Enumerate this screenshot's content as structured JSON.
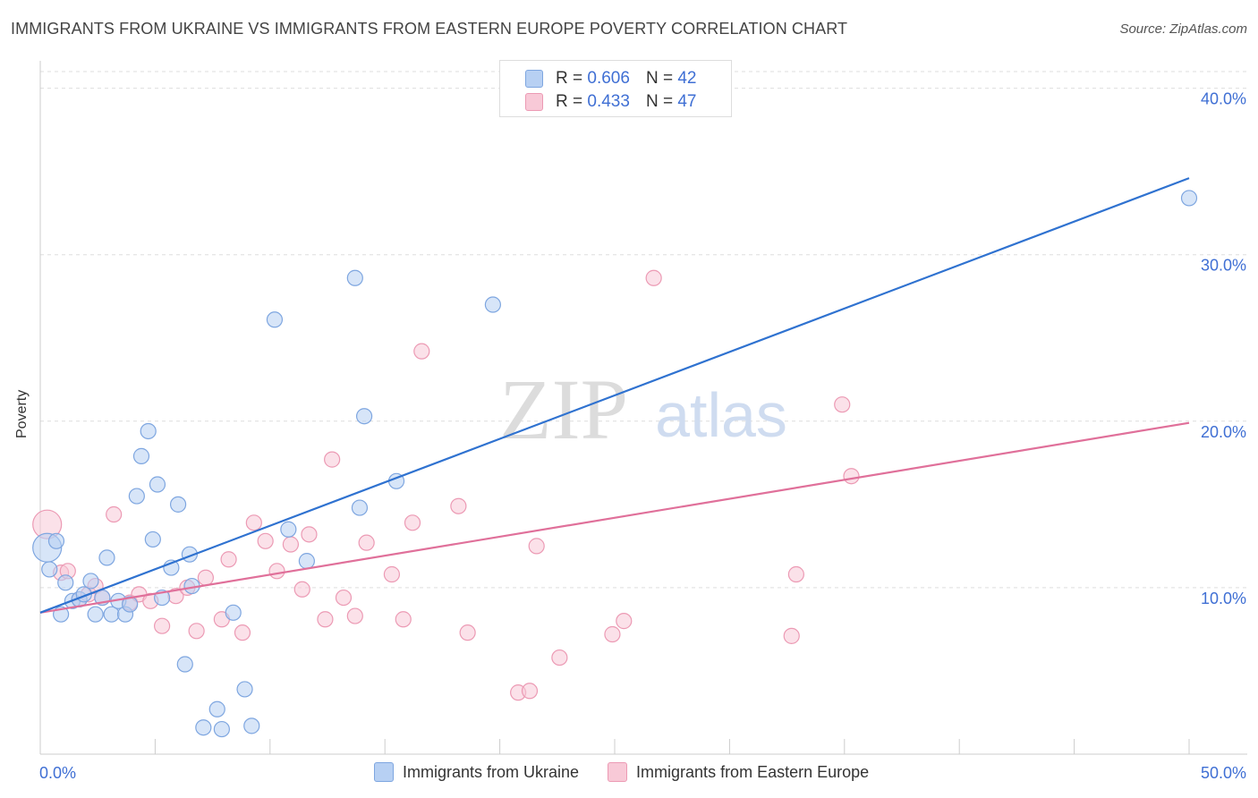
{
  "header": {
    "title": "IMMIGRANTS FROM UKRAINE VS IMMIGRANTS FROM EASTERN EUROPE POVERTY CORRELATION CHART",
    "source": "Source: ZipAtlas.com"
  },
  "legend": {
    "ukraine": {
      "r_label": "R =",
      "r_value": "0.606",
      "n_label": "N =",
      "n_value": "42"
    },
    "eastern": {
      "r_label": "R =",
      "r_value": "0.433",
      "n_label": "N =",
      "n_value": "47"
    }
  },
  "bottom_legend": {
    "ukraine": "Immigrants from Ukraine",
    "eastern": "Immigrants from Eastern Europe"
  },
  "watermark": {
    "zip": "ZIP",
    "atlas": "atlas"
  },
  "colors": {
    "ukraine_fill": "#b7d0f3",
    "ukraine_stroke": "#7ea6e0",
    "ukraine_line": "#2f72d0",
    "eastern_fill": "#f8c9d7",
    "eastern_stroke": "#ec9ab4",
    "eastern_line": "#e0709a",
    "tick_label": "#3f6fd4"
  },
  "chart_data": {
    "type": "scatter",
    "title": "IMMIGRANTS FROM UKRAINE VS IMMIGRANTS FROM EASTERN EUROPE POVERTY CORRELATION CHART",
    "xlabel": "",
    "ylabel": "Poverty",
    "xlim": [
      0,
      50
    ],
    "ylim": [
      0,
      41
    ],
    "x_tick_labels": [
      "0.0%",
      "50.0%"
    ],
    "y_ticks": [
      10,
      20,
      30,
      40
    ],
    "y_tick_labels": [
      "10.0%",
      "20.0%",
      "30.0%",
      "40.0%"
    ],
    "grid": true,
    "series": [
      {
        "name": "Immigrants from Ukraine",
        "r": 0.606,
        "n": 42,
        "trend": [
          [
            0,
            8.5
          ],
          [
            50,
            34.6
          ]
        ],
        "points": [
          [
            0.3,
            12.4,
            3
          ],
          [
            0.4,
            11.1,
            1
          ],
          [
            0.7,
            12.8,
            1
          ],
          [
            0.9,
            8.4,
            1
          ],
          [
            1.1,
            10.3,
            1
          ],
          [
            1.4,
            9.2,
            1
          ],
          [
            1.7,
            9.3,
            1
          ],
          [
            1.9,
            9.6,
            1
          ],
          [
            2.2,
            10.4,
            1
          ],
          [
            2.4,
            8.4,
            1
          ],
          [
            2.7,
            9.4,
            1
          ],
          [
            2.9,
            11.8,
            1
          ],
          [
            3.1,
            8.4,
            1
          ],
          [
            3.4,
            9.2,
            1
          ],
          [
            3.7,
            8.4,
            1
          ],
          [
            3.9,
            9.0,
            1
          ],
          [
            4.2,
            15.5,
            1
          ],
          [
            4.4,
            17.9,
            1
          ],
          [
            4.7,
            19.4,
            1
          ],
          [
            4.9,
            12.9,
            1
          ],
          [
            5.1,
            16.2,
            1
          ],
          [
            5.3,
            9.4,
            1
          ],
          [
            5.7,
            11.2,
            1
          ],
          [
            6.0,
            15.0,
            1
          ],
          [
            6.3,
            5.4,
            1
          ],
          [
            6.5,
            12.0,
            1
          ],
          [
            6.6,
            10.1,
            1
          ],
          [
            7.1,
            1.6,
            1
          ],
          [
            7.7,
            2.7,
            1
          ],
          [
            7.9,
            1.5,
            1
          ],
          [
            8.4,
            8.5,
            1
          ],
          [
            8.9,
            3.9,
            1
          ],
          [
            9.2,
            1.7,
            1
          ],
          [
            10.2,
            26.1,
            1
          ],
          [
            10.8,
            13.5,
            1
          ],
          [
            11.6,
            11.6,
            1
          ],
          [
            13.7,
            28.6,
            1
          ],
          [
            13.9,
            14.8,
            1
          ],
          [
            14.1,
            20.3,
            1
          ],
          [
            15.5,
            16.4,
            1
          ],
          [
            19.7,
            27.0,
            1
          ],
          [
            50.0,
            33.4,
            1
          ]
        ]
      },
      {
        "name": "Immigrants from Eastern Europe",
        "r": 0.433,
        "n": 47,
        "trend": [
          [
            0,
            8.5
          ],
          [
            50,
            19.9
          ]
        ],
        "points": [
          [
            0.3,
            13.8,
            3
          ],
          [
            0.9,
            10.9,
            1
          ],
          [
            1.2,
            11.0,
            1
          ],
          [
            1.7,
            9.3,
            1
          ],
          [
            2.1,
            9.6,
            1
          ],
          [
            2.4,
            10.1,
            1
          ],
          [
            2.7,
            9.4,
            1
          ],
          [
            3.2,
            14.4,
            1
          ],
          [
            3.9,
            9.1,
            1
          ],
          [
            4.3,
            9.6,
            1
          ],
          [
            4.8,
            9.2,
            1
          ],
          [
            5.3,
            7.7,
            1
          ],
          [
            5.9,
            9.5,
            1
          ],
          [
            6.4,
            10.0,
            1
          ],
          [
            6.8,
            7.4,
            1
          ],
          [
            7.2,
            10.6,
            1
          ],
          [
            7.9,
            8.1,
            1
          ],
          [
            8.2,
            11.7,
            1
          ],
          [
            8.8,
            7.3,
            1
          ],
          [
            9.3,
            13.9,
            1
          ],
          [
            9.8,
            12.8,
            1
          ],
          [
            10.3,
            11.0,
            1
          ],
          [
            10.9,
            12.6,
            1
          ],
          [
            11.4,
            9.9,
            1
          ],
          [
            11.7,
            13.2,
            1
          ],
          [
            12.4,
            8.1,
            1
          ],
          [
            12.7,
            17.7,
            1
          ],
          [
            13.2,
            9.4,
            1
          ],
          [
            13.7,
            8.3,
            1
          ],
          [
            14.2,
            12.7,
            1
          ],
          [
            15.3,
            10.8,
            1
          ],
          [
            15.8,
            8.1,
            1
          ],
          [
            16.2,
            13.9,
            1
          ],
          [
            16.6,
            24.2,
            1
          ],
          [
            18.2,
            14.9,
            1
          ],
          [
            18.6,
            7.3,
            1
          ],
          [
            20.8,
            3.7,
            1
          ],
          [
            21.3,
            3.8,
            1
          ],
          [
            21.6,
            12.5,
            1
          ],
          [
            22.6,
            5.8,
            1
          ],
          [
            24.9,
            7.2,
            1
          ],
          [
            25.4,
            8.0,
            1
          ],
          [
            26.7,
            28.6,
            1
          ],
          [
            32.7,
            7.1,
            1
          ],
          [
            32.9,
            10.8,
            1
          ],
          [
            34.9,
            21.0,
            1
          ],
          [
            35.3,
            16.7,
            1
          ]
        ]
      }
    ]
  }
}
